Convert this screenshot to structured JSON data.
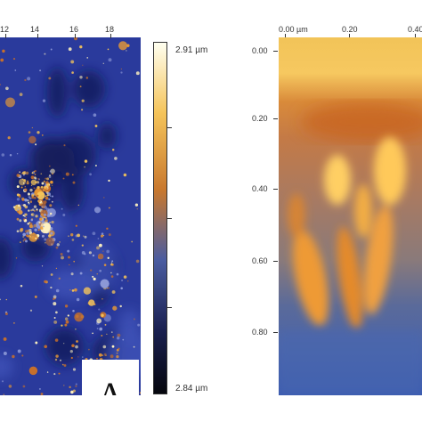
{
  "panel_a": {
    "x_ticks": [
      "12",
      "14",
      "16",
      "18"
    ],
    "label": "A"
  },
  "colorbar": {
    "max_label": "2.91 µm",
    "min_label": "2.84 µm",
    "colors": [
      "#fffff0",
      "#f5c45a",
      "#c8782e",
      "#4a5ca0",
      "#1a2050",
      "#05060d"
    ]
  },
  "panel_b": {
    "x_ticks": [
      "0.00 µm",
      "0.20",
      "0.40"
    ],
    "y_ticks": [
      "0.00",
      "0.20",
      "0.40",
      "0.60",
      "0.80"
    ]
  },
  "colors": {
    "deep_blue": "#1f2f8c",
    "mid_blue": "#3446a8",
    "orange": "#e08a2a",
    "gold": "#f5c24a",
    "cream": "#fff4c8"
  }
}
